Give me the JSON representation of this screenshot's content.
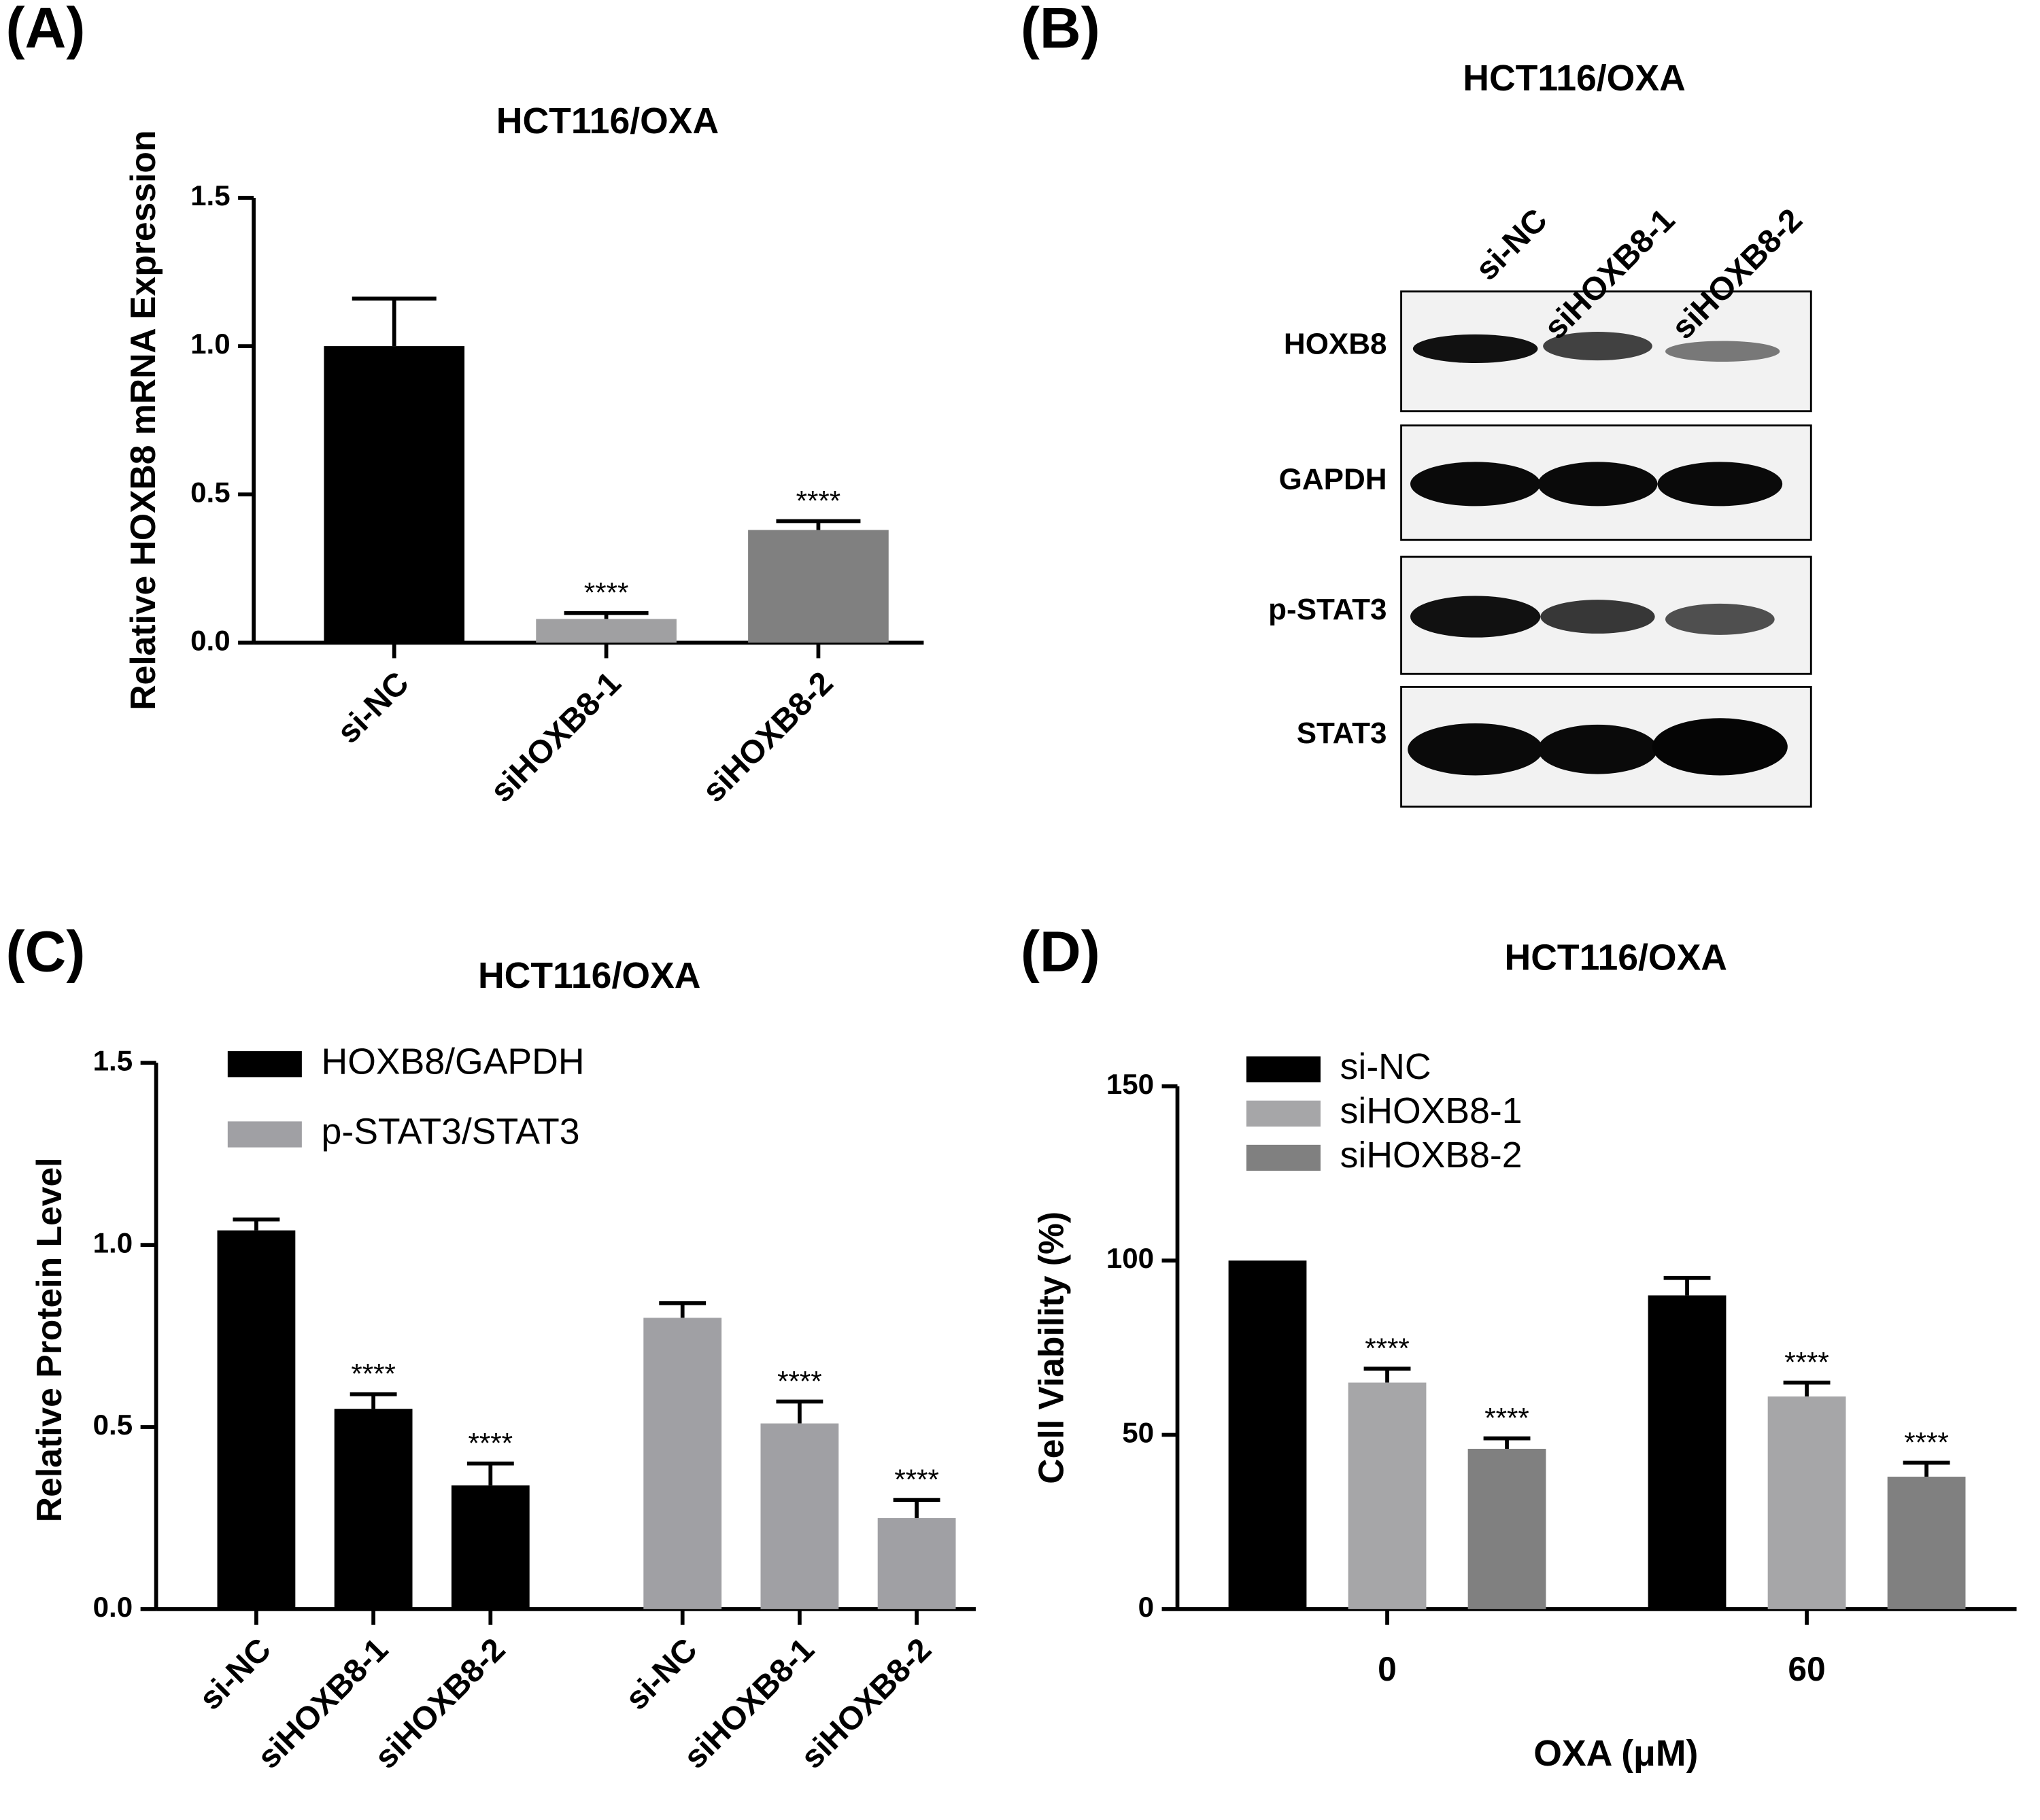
{
  "chart_data": [
    {
      "type": "bar",
      "panel": "(A)",
      "title": "HCT116/OXA",
      "ylabel": "Relative HOXB8 mRNA Expression",
      "categories": [
        "si-NC",
        "siHOXB8-1",
        "siHOXB8-2"
      ],
      "values": [
        1.0,
        0.08,
        0.38
      ],
      "errors": [
        0.16,
        0.02,
        0.03
      ],
      "annotations": [
        null,
        "****",
        "****"
      ],
      "colors": [
        "#000000",
        "#a0a0a2",
        "#808080"
      ],
      "ylim": [
        0,
        1.5
      ],
      "yticks": [
        {
          "value": 0,
          "label": "0.0"
        },
        0.5,
        {
          "value": 1,
          "label": "1.0"
        },
        1.5
      ]
    },
    {
      "type": "blot",
      "panel": "(B)",
      "title": "HCT116/OXA",
      "lanes": [
        "si-NC",
        "siHOXB8-1",
        "siHOXB8-2"
      ],
      "rows": [
        "HOXB8",
        "GAPDH",
        "p-STAT3",
        "STAT3"
      ]
    },
    {
      "type": "bar",
      "panel": "(C)",
      "title": "HCT116/OXA",
      "ylabel": "Relative Protein Level",
      "series": [
        {
          "name": "HOXB8/GAPDH",
          "color": "#000000",
          "categories": [
            "si-NC",
            "siHOXB8-1",
            "siHOXB8-2"
          ],
          "values": [
            1.04,
            0.55,
            0.34
          ],
          "errors": [
            0.03,
            0.04,
            0.06
          ],
          "annotations": [
            null,
            "****",
            "****"
          ]
        },
        {
          "name": "p-STAT3/STAT3",
          "color": "#a0a0a4",
          "categories": [
            "si-NC",
            "siHOXB8-1",
            "siHOXB8-2"
          ],
          "values": [
            0.8,
            0.51,
            0.25
          ],
          "errors": [
            0.04,
            0.06,
            0.05
          ],
          "annotations": [
            null,
            "****",
            "****"
          ]
        }
      ],
      "ylim": [
        0,
        1.5
      ],
      "yticks": [
        {
          "value": 0,
          "label": "0.0"
        },
        0.5,
        {
          "value": 1,
          "label": "1.0"
        },
        1.5
      ],
      "legend": "top-left"
    },
    {
      "type": "bar",
      "panel": "(D)",
      "title": "HCT116/OXA",
      "ylabel": "Cell Viability (%)",
      "xlabel": "OXA (μM)",
      "categories": [
        "0",
        "60"
      ],
      "series": [
        {
          "name": "si-NC",
          "color": "#000000",
          "values": [
            100,
            90
          ],
          "errors": [
            null,
            5
          ],
          "annotations": [
            null,
            null
          ]
        },
        {
          "name": "siHOXB8-1",
          "color": "#a6a6a8",
          "values": [
            65,
            61
          ],
          "errors": [
            4,
            4
          ],
          "annotations": [
            "****",
            "****"
          ]
        },
        {
          "name": "siHOXB8-2",
          "color": "#808080",
          "values": [
            46,
            38
          ],
          "errors": [
            3,
            4
          ],
          "annotations": [
            "****",
            "****"
          ]
        }
      ],
      "ylim": [
        0,
        150
      ],
      "yticks": [
        0,
        50,
        100,
        150
      ],
      "legend": "top-left"
    }
  ]
}
